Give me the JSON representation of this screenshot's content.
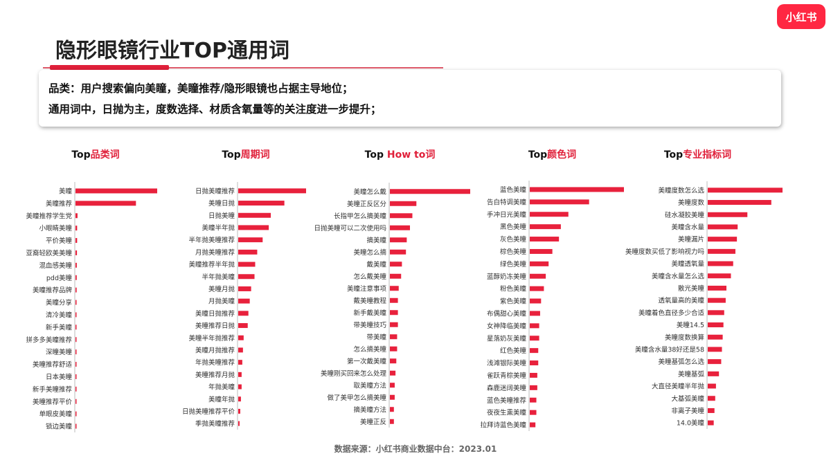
{
  "brand": {
    "logo_text": "小红书",
    "accent": "#ff2742",
    "bar_color": "#e8213c"
  },
  "page": {
    "title": "隐形眼镜行业TOP通用词"
  },
  "summary": {
    "line1": "品类：用户搜索偏向美瞳，美瞳推荐/隐形眼镜也占据主导地位；",
    "line2": "通用词中，日抛为主，度数选择、材质含氧量等的关注度进一步提升；"
  },
  "source": "数据来源：小红书商业数据中台：2023.01",
  "chart_data": [
    {
      "type": "bar",
      "orientation": "horizontal",
      "title_prefix": "Top",
      "title_red": "品类词",
      "categories": [
        "美瞳",
        "美瞳推荐",
        "美瞳推荐学生党",
        "小眼睛美瞳",
        "平价美瞳",
        "亚裔轻欧美美瞳",
        "混血感美瞳",
        "pdd美瞳",
        "美瞳推荐品牌",
        "美瞳分享",
        "清冷美瞳",
        "新手美瞳",
        "拼多多美瞳推荐",
        "深瞳美瞳",
        "美瞳推荐舒适",
        "日本美瞳",
        "新手美瞳推荐",
        "美瞳推荐平价",
        "单眼皮美瞳",
        "锁边美瞳"
      ],
      "values": [
        100,
        74,
        2.5,
        2,
        2,
        1.8,
        1.6,
        1.5,
        1.4,
        1.3,
        1.2,
        1.2,
        1.1,
        1.0,
        1.0,
        0.9,
        0.9,
        0.8,
        0.8,
        0.7
      ]
    },
    {
      "type": "bar",
      "orientation": "horizontal",
      "title_prefix": "Top",
      "title_red": "周期词",
      "categories": [
        "日抛美瞳推荐",
        "美瞳日抛",
        "日抛美瞳",
        "美瞳半年抛",
        "半年抛美瞳推荐",
        "月抛美瞳推荐",
        "美瞳推荐半年抛",
        "半年抛美瞳",
        "美瞳月抛",
        "月抛美瞳",
        "美瞳日抛推荐",
        "美瞳推荐日抛",
        "美瞳半年抛推荐",
        "美瞳月抛推荐",
        "年抛美瞳推荐",
        "美瞳推荐月抛",
        "年抛美瞳",
        "美瞳年抛",
        "日抛美瞳推荐平价",
        "季抛美瞳推荐"
      ],
      "values": [
        100,
        68,
        48,
        45,
        36,
        28,
        25,
        24,
        19,
        17,
        15,
        14,
        8,
        7,
        6,
        5,
        5,
        4,
        3,
        2
      ]
    },
    {
      "type": "bar",
      "orientation": "horizontal",
      "title_prefix": "Top",
      "title_red": "How to词",
      "categories": [
        "美瞳怎么戴",
        "美瞳正反区分",
        "长指甲怎么摘美瞳",
        "日抛美瞳可以二次使用吗",
        "摘美瞳",
        "美瞳怎么摘",
        "戴美瞳",
        "怎么戴美瞳",
        "美瞳注意事项",
        "戴美瞳教程",
        "新手戴美瞳",
        "带美瞳技巧",
        "带美瞳",
        "怎么摘美瞳",
        "第一次戴美瞳",
        "美瞳刚买回来怎么处理",
        "取美瞳方法",
        "做了美甲怎么摘美瞳",
        "摘美瞳方法",
        "美瞳正反"
      ],
      "values": [
        100,
        33,
        28,
        25,
        21,
        20,
        15,
        14,
        11,
        10,
        10,
        10,
        9,
        9,
        8,
        7,
        6,
        6,
        5,
        5
      ]
    },
    {
      "type": "bar",
      "orientation": "horizontal",
      "title_prefix": "Top",
      "title_red": "颜色词",
      "categories": [
        "蓝色美瞳",
        "告白特调美瞳",
        "手冲日光美瞳",
        "黑色美瞳",
        "灰色美瞳",
        "棕色美瞳",
        "绿色美瞳",
        "蓝醇奶冻美瞳",
        "粉色美瞳",
        "紫色美瞳",
        "布偶甜心美瞳",
        "女神降临美瞳",
        "星落奶灰美瞳",
        "红色美瞳",
        "浅滩银际美瞳",
        "雀跃青棕美瞳",
        "森鹿迷阔美瞳",
        "蓝色美瞳推荐",
        "夜夜生熏美瞳",
        "拉拜诗蓝色美瞳"
      ],
      "values": [
        100,
        63,
        41,
        33,
        31,
        24,
        20,
        17,
        15,
        12,
        11,
        10,
        10,
        9,
        9,
        8,
        8,
        7,
        7,
        6
      ]
    },
    {
      "type": "bar",
      "orientation": "horizontal",
      "title_prefix": "Top",
      "title_red": "专业指标词",
      "categories": [
        "美瞳度数怎么选",
        "美瞳度数",
        "硅水凝胶美瞳",
        "美瞳含水量",
        "美瞳漏片",
        "美瞳度数买低了影响视力吗",
        "美瞳透氧量",
        "美瞳含水量怎么选",
        "散光美瞳",
        "透氧量高的美瞳",
        "美瞳着色直径多少合适",
        "美瞳14.5",
        "美瞳度数换算",
        "美瞳含水量38好还是58",
        "美瞳基弧怎么选",
        "美瞳基弧",
        "大直径美瞳半年抛",
        "大基弧美瞳",
        "非离子美瞳",
        "14.0美瞳"
      ],
      "values": [
        100,
        85,
        53,
        40,
        39,
        37,
        34,
        31,
        25,
        24,
        22,
        21,
        20,
        19,
        18,
        15,
        11,
        10,
        9,
        8
      ]
    }
  ]
}
